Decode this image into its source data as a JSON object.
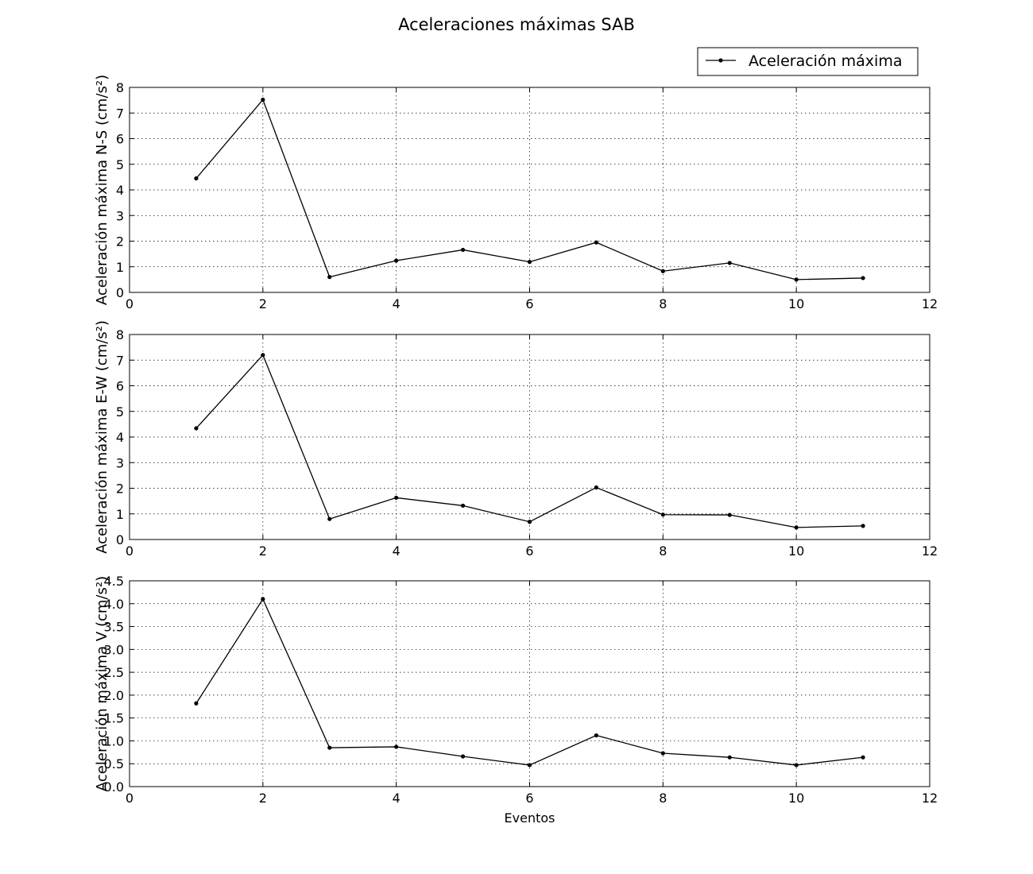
{
  "figure": {
    "title": "Aceleraciones máximas SAB",
    "legend": {
      "label": "Aceleración máxima",
      "placement": "top-right",
      "line_color": "#000000"
    }
  },
  "chart_data": [
    {
      "type": "line",
      "title": "",
      "xlabel": "",
      "ylabel": "Aceleración máxima N-S (cm/s²)",
      "xlim": [
        0,
        12
      ],
      "ylim": [
        0,
        8
      ],
      "xticks": [
        "0",
        "2",
        "4",
        "6",
        "8",
        "10",
        "12"
      ],
      "yticks": [
        "0",
        "1",
        "2",
        "3",
        "4",
        "5",
        "6",
        "7",
        "8"
      ],
      "grid": true,
      "series": [
        {
          "name": "Aceleración máxima",
          "color": "#000000",
          "x": [
            1,
            2,
            3,
            4,
            5,
            6,
            7,
            8,
            9,
            10,
            11
          ],
          "y": [
            4.45,
            7.52,
            0.6,
            1.24,
            1.66,
            1.19,
            1.95,
            0.83,
            1.15,
            0.5,
            0.56
          ]
        }
      ]
    },
    {
      "type": "line",
      "title": "",
      "xlabel": "",
      "ylabel": "Aceleración máxima E-W (cm/s²)",
      "xlim": [
        0,
        12
      ],
      "ylim": [
        0,
        8
      ],
      "xticks": [
        "0",
        "2",
        "4",
        "6",
        "8",
        "10",
        "12"
      ],
      "yticks": [
        "0",
        "1",
        "2",
        "3",
        "4",
        "5",
        "6",
        "7",
        "8"
      ],
      "grid": true,
      "series": [
        {
          "name": "Aceleración máxima",
          "color": "#000000",
          "x": [
            1,
            2,
            3,
            4,
            5,
            6,
            7,
            8,
            9,
            10,
            11
          ],
          "y": [
            4.34,
            7.2,
            0.8,
            1.63,
            1.32,
            0.69,
            2.03,
            0.97,
            0.96,
            0.47,
            0.53
          ]
        }
      ]
    },
    {
      "type": "line",
      "title": "",
      "xlabel": "Eventos",
      "ylabel": "Aceleración máxima V (cm/s²)",
      "xlim": [
        0,
        12
      ],
      "ylim": [
        0,
        4.5
      ],
      "xticks": [
        "0",
        "2",
        "4",
        "6",
        "8",
        "10",
        "12"
      ],
      "yticks": [
        "0.0",
        "0.5",
        "1.0",
        "1.5",
        "2.0",
        "2.5",
        "3.0",
        "3.5",
        "4.0",
        "4.5"
      ],
      "grid": true,
      "series": [
        {
          "name": "Aceleración máxima",
          "color": "#000000",
          "x": [
            1,
            2,
            3,
            4,
            5,
            6,
            7,
            8,
            9,
            10,
            11
          ],
          "y": [
            1.82,
            4.1,
            0.85,
            0.87,
            0.66,
            0.47,
            1.12,
            0.73,
            0.64,
            0.47,
            0.64
          ]
        }
      ]
    }
  ]
}
